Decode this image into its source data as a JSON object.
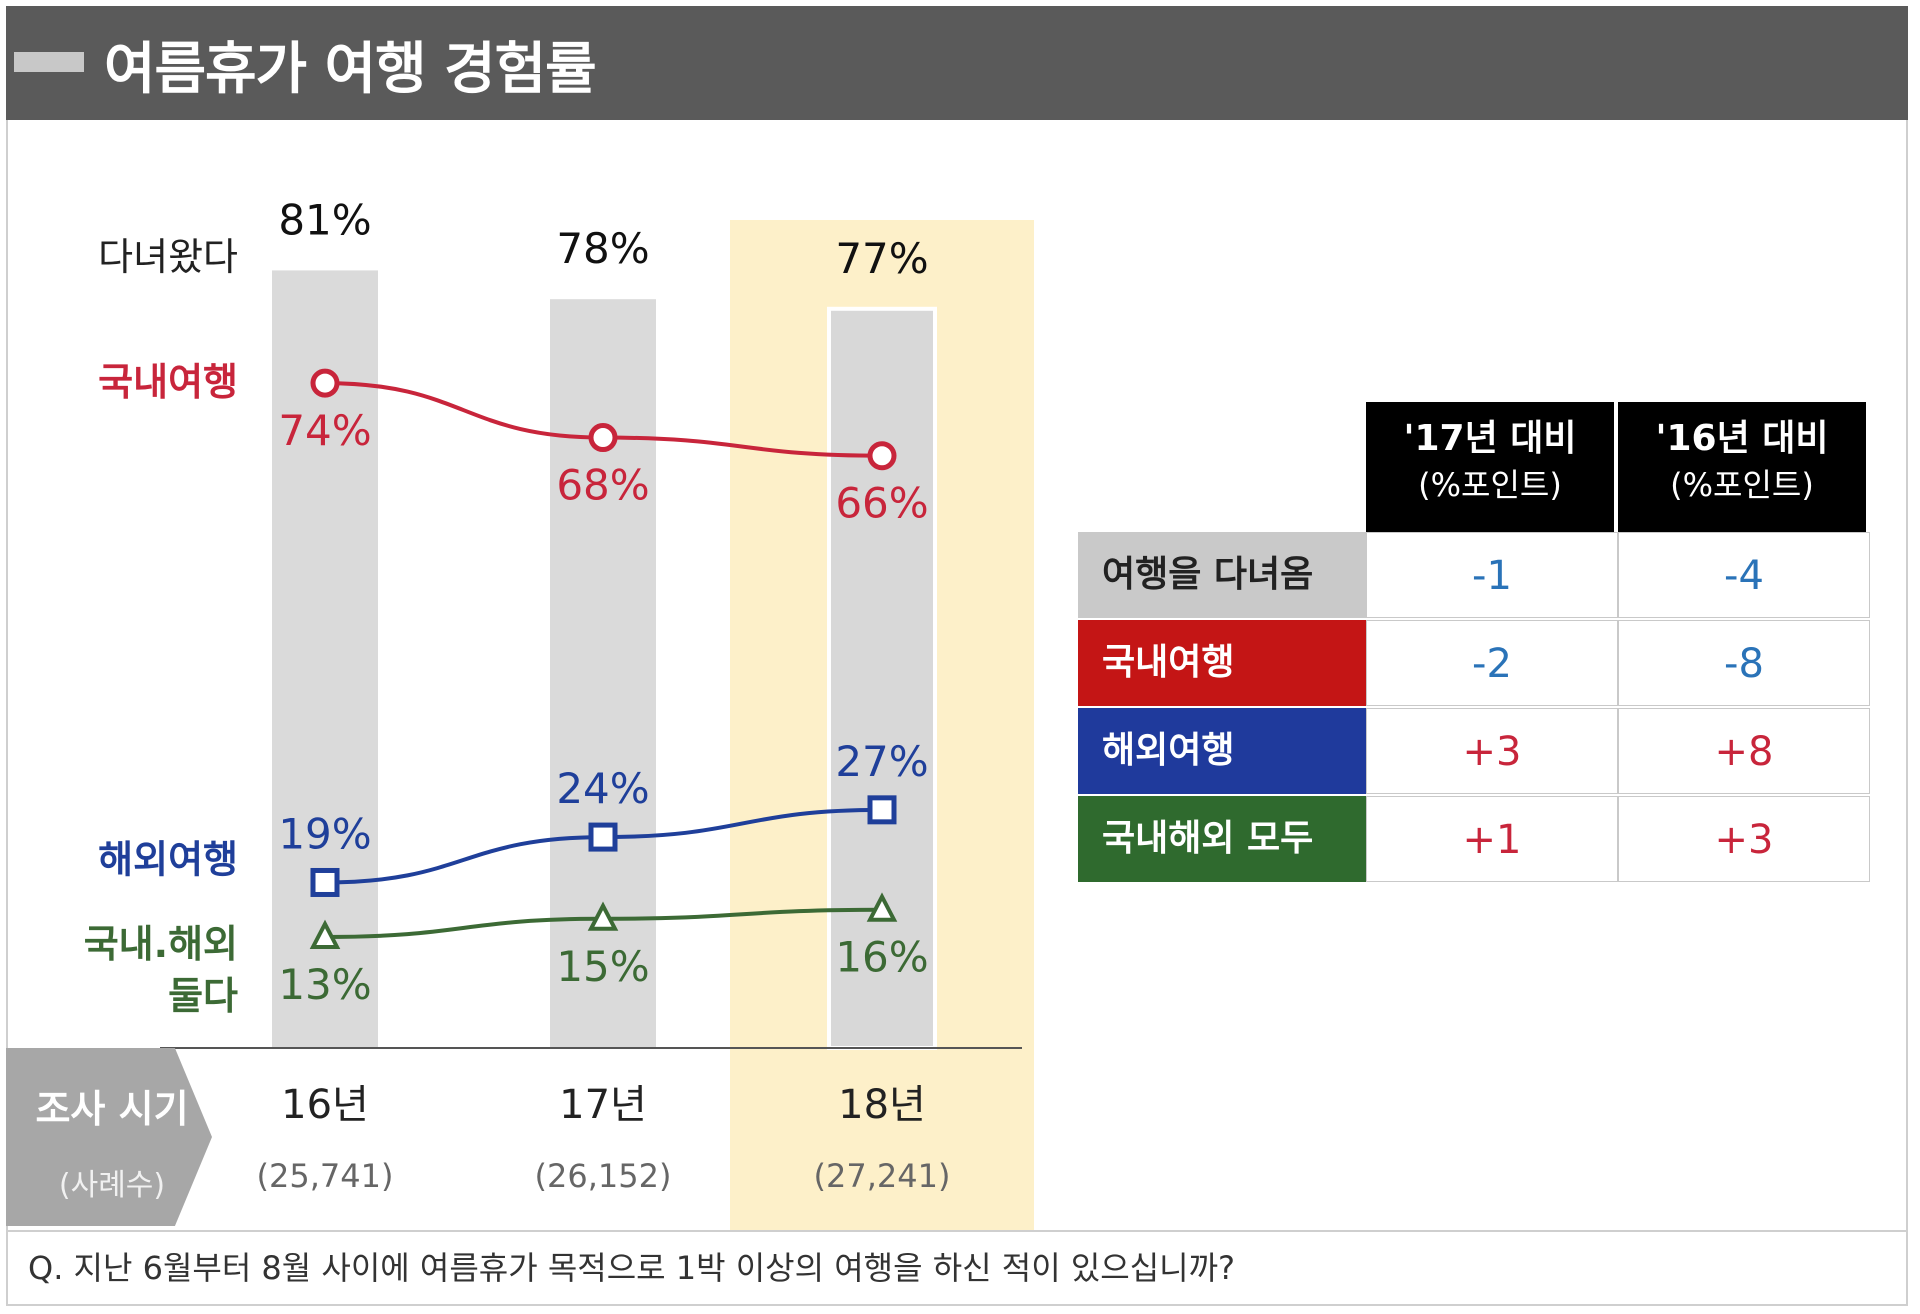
{
  "title": "여름휴가 여행 경험률",
  "chart_data": {
    "type": "line",
    "categories": [
      "16년",
      "17년",
      "18년"
    ],
    "sample_sizes": [
      "(25,741)",
      "(26,152)",
      "(27,241)"
    ],
    "highlight_category": "18년",
    "bar_series": {
      "name": "다녀왔다",
      "values": [
        81,
        78,
        77
      ],
      "labels": [
        "81%",
        "78%",
        "77%"
      ]
    },
    "series": [
      {
        "name": "국내여행",
        "values": [
          74,
          68,
          66
        ],
        "labels": [
          "74%",
          "68%",
          "66%"
        ],
        "color": "#c8253b",
        "marker": "circle"
      },
      {
        "name": "해외여행",
        "values": [
          19,
          24,
          27
        ],
        "labels": [
          "19%",
          "24%",
          "27%"
        ],
        "color": "#1f3f9a",
        "marker": "square"
      },
      {
        "name": "국내·해외 둘다",
        "name_lines": [
          "국내.해외",
          "둘다"
        ],
        "values": [
          13,
          15,
          16
        ],
        "labels": [
          "13%",
          "15%",
          "16%"
        ],
        "color": "#3c6a35",
        "marker": "triangle"
      }
    ],
    "ylim": [
      0,
      100
    ]
  },
  "footer": {
    "title": "조사 시기",
    "subtitle": "(사례수)"
  },
  "table": {
    "headers": [
      {
        "line1": "'17년 대비",
        "line2": "(%포인트)"
      },
      {
        "line1": "'16년 대비",
        "line2": "(%포인트)"
      }
    ],
    "rows": [
      {
        "label": "여행을 다녀옴",
        "values": [
          "-1",
          "-4"
        ],
        "label_bg": "#c9c9c9",
        "label_color": "#222222"
      },
      {
        "label": "국내여행",
        "values": [
          "-2",
          "-8"
        ],
        "label_bg": "#c41515",
        "label_color": "#ffffff"
      },
      {
        "label": "해외여행",
        "values": [
          "+3",
          "+8"
        ],
        "label_bg": "#1f3a9c",
        "label_color": "#ffffff"
      },
      {
        "label": "국내해외 모두",
        "values": [
          "+1",
          "+3"
        ],
        "label_bg": "#2f6a2e",
        "label_color": "#ffffff"
      }
    ]
  },
  "question": "Q. 지난 6월부터 8월 사이에 여름휴가 목적으로 1박 이상의 여행을 하신 적이 있으십니까?"
}
